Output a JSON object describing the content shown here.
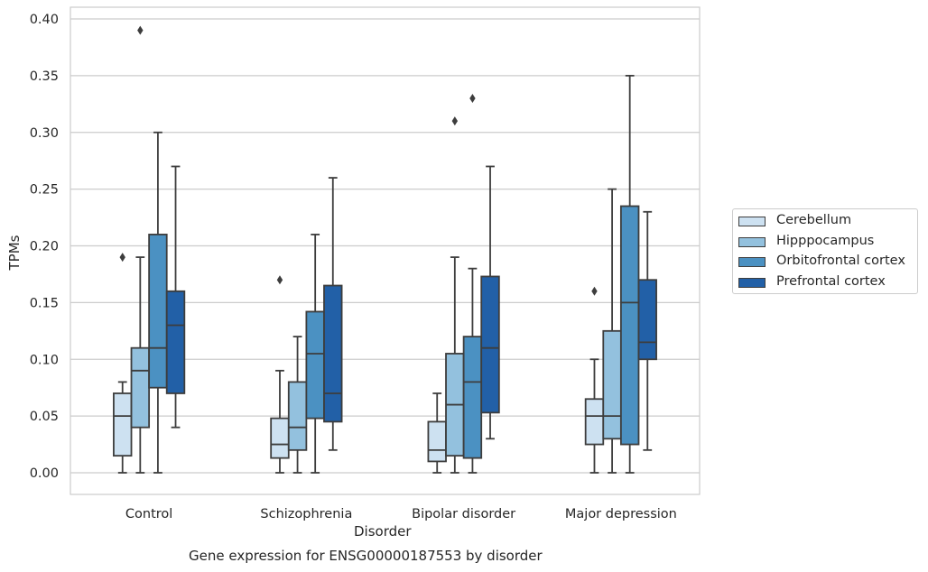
{
  "chart_data": {
    "type": "box",
    "title": "Gene expression for ENSG00000187553 by disorder",
    "xlabel": "Disorder",
    "ylabel": "TPMs",
    "ylim": [
      -0.018,
      0.41
    ],
    "yticks": [
      "0.00",
      "0.05",
      "0.10",
      "0.15",
      "0.20",
      "0.25",
      "0.30",
      "0.35",
      "0.40"
    ],
    "grid": "horizontal",
    "legend_position": "right",
    "categories": [
      "Control",
      "Schizophrenia",
      "Bipolar disorder",
      "Major depression"
    ],
    "series": [
      {
        "name": "Cerebellum",
        "color": "#cde1f1",
        "boxes": [
          {
            "whislo": 0.0,
            "q1": 0.015,
            "med": 0.05,
            "q3": 0.07,
            "whishi": 0.08,
            "fliers": [
              0.19
            ]
          },
          {
            "whislo": 0.0,
            "q1": 0.013,
            "med": 0.025,
            "q3": 0.048,
            "whishi": 0.09,
            "fliers": [
              0.17
            ]
          },
          {
            "whislo": 0.0,
            "q1": 0.01,
            "med": 0.02,
            "q3": 0.045,
            "whishi": 0.07,
            "fliers": []
          },
          {
            "whislo": 0.0,
            "q1": 0.025,
            "med": 0.05,
            "q3": 0.065,
            "whishi": 0.1,
            "fliers": [
              0.16
            ]
          }
        ]
      },
      {
        "name": "Hipppocampus",
        "color": "#93c1de",
        "boxes": [
          {
            "whislo": 0.0,
            "q1": 0.04,
            "med": 0.09,
            "q3": 0.11,
            "whishi": 0.19,
            "fliers": [
              0.39
            ]
          },
          {
            "whislo": 0.0,
            "q1": 0.02,
            "med": 0.04,
            "q3": 0.08,
            "whishi": 0.12,
            "fliers": []
          },
          {
            "whislo": 0.0,
            "q1": 0.015,
            "med": 0.06,
            "q3": 0.105,
            "whishi": 0.19,
            "fliers": [
              0.31
            ]
          },
          {
            "whislo": 0.0,
            "q1": 0.03,
            "med": 0.05,
            "q3": 0.125,
            "whishi": 0.25,
            "fliers": []
          }
        ]
      },
      {
        "name": "Orbitofrontal cortex",
        "color": "#4b91c2",
        "boxes": [
          {
            "whislo": 0.0,
            "q1": 0.075,
            "med": 0.11,
            "q3": 0.21,
            "whishi": 0.3,
            "fliers": []
          },
          {
            "whislo": 0.0,
            "q1": 0.048,
            "med": 0.105,
            "q3": 0.142,
            "whishi": 0.21,
            "fliers": []
          },
          {
            "whislo": 0.0,
            "q1": 0.013,
            "med": 0.08,
            "q3": 0.12,
            "whishi": 0.18,
            "fliers": [
              0.33
            ]
          },
          {
            "whislo": 0.0,
            "q1": 0.025,
            "med": 0.15,
            "q3": 0.235,
            "whishi": 0.35,
            "fliers": []
          }
        ]
      },
      {
        "name": "Prefrontal cortex",
        "color": "#2260a7",
        "boxes": [
          {
            "whislo": 0.04,
            "q1": 0.07,
            "med": 0.13,
            "q3": 0.16,
            "whishi": 0.27,
            "fliers": []
          },
          {
            "whislo": 0.02,
            "q1": 0.045,
            "med": 0.07,
            "q3": 0.165,
            "whishi": 0.26,
            "fliers": []
          },
          {
            "whislo": 0.03,
            "q1": 0.053,
            "med": 0.11,
            "q3": 0.173,
            "whishi": 0.27,
            "fliers": []
          },
          {
            "whislo": 0.02,
            "q1": 0.1,
            "med": 0.115,
            "q3": 0.17,
            "whishi": 0.23,
            "fliers": []
          }
        ]
      }
    ]
  }
}
